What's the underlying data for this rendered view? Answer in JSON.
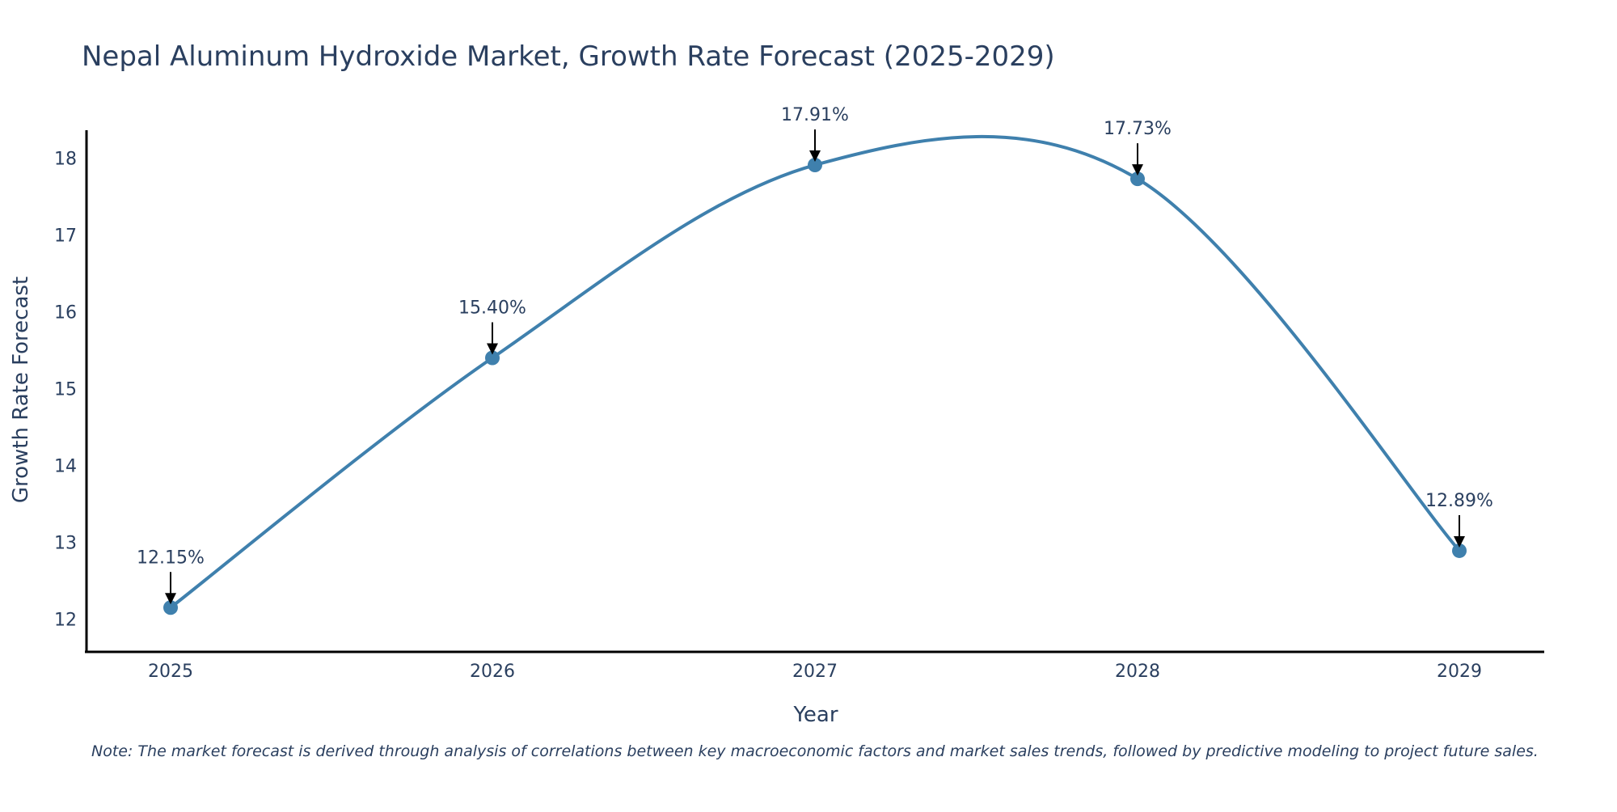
{
  "chart_data": {
    "type": "line",
    "title": "Nepal Aluminum Hydroxide Market, Growth Rate Forecast (2025-2029)",
    "xlabel": "Year",
    "ylabel": "Growth Rate Forecast",
    "x": [
      "2025",
      "2026",
      "2027",
      "2028",
      "2029"
    ],
    "series": [
      {
        "name": "Growth Rate Forecast",
        "values": [
          12.15,
          15.4,
          17.91,
          17.73,
          12.89
        ]
      }
    ],
    "annotations": [
      "12.15%",
      "15.40%",
      "17.91%",
      "17.73%",
      "12.89%"
    ],
    "yticks": [
      "12",
      "13",
      "14",
      "15",
      "16",
      "17",
      "18"
    ],
    "ylim": [
      11.6,
      18.4
    ],
    "line_shape": "spline",
    "line_color": "#3f80ad",
    "marker_color": "#3f80ad",
    "grid": false
  },
  "note": "Note: The market forecast is derived through analysis of correlations between key macroeconomic factors and market sales trends, followed by predictive modeling to project future sales."
}
